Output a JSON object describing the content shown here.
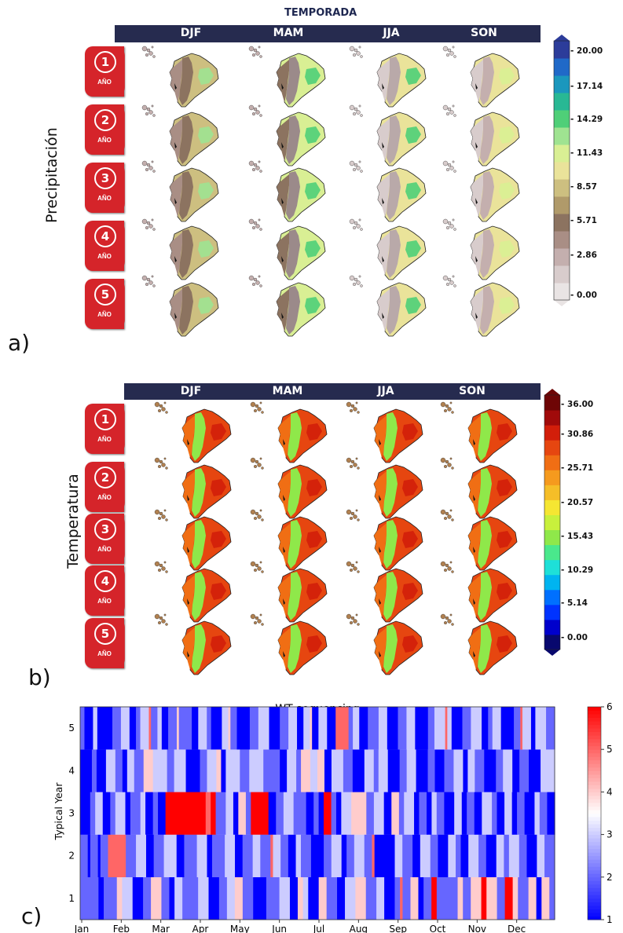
{
  "panel_a": {
    "top_title": "TEMPORADA",
    "seasons": [
      "DJF",
      "MAM",
      "JJA",
      "SON"
    ],
    "ylabel": "Precipitación",
    "panel_label": "a)",
    "years": [
      "1",
      "2",
      "3",
      "4",
      "5"
    ],
    "year_word": "AÑO",
    "colorbar_ticks": [
      "20.00",
      "17.14",
      "14.29",
      "11.43",
      "8.57",
      "5.71",
      "2.86",
      "0.00"
    ],
    "colors": [
      "#e9e4e4",
      "#d8cccc",
      "#c4afae",
      "#a98e85",
      "#8c7360",
      "#b09a6a",
      "#cdbf80",
      "#eae39a",
      "#d9ef94",
      "#9fe391",
      "#4fcf78",
      "#28b894",
      "#1b97bd",
      "#2069c8",
      "#2c3c9a"
    ]
  },
  "panel_b": {
    "seasons": [
      "DJF",
      "MAM",
      "JJA",
      "SON"
    ],
    "ylabel": "Temperatura",
    "panel_label": "b)",
    "years": [
      "1",
      "2",
      "3",
      "4",
      "5"
    ],
    "year_word": "AÑO",
    "colorbar_ticks": [
      "36.00",
      "30.86",
      "25.71",
      "20.57",
      "15.43",
      "10.29",
      "5.14",
      "0.00"
    ],
    "colors": [
      "#08086e",
      "#0000cc",
      "#0033ff",
      "#0070ff",
      "#00b4f0",
      "#1ee0d8",
      "#4ae88c",
      "#8fe84a",
      "#c8f03c",
      "#f5e632",
      "#f5be28",
      "#f59a1e",
      "#f06e14",
      "#e64610",
      "#d21e0a",
      "#a00a0a",
      "#6e0505"
    ]
  },
  "chart_data": {
    "type": "heatmap",
    "title": "WT sequencing",
    "xlabel": "",
    "ylabel": "Typical Year",
    "x_ticks": [
      "Jan",
      "Feb",
      "Mar",
      "Apr",
      "May",
      "Jun",
      "Jul",
      "Aug",
      "Sep",
      "Oct",
      "Nov",
      "Dec"
    ],
    "y_ticks": [
      "1",
      "2",
      "3",
      "4",
      "5"
    ],
    "colorbar_ticks": [
      "1",
      "2",
      "3",
      "4",
      "5",
      "6"
    ],
    "zlim": [
      1,
      6
    ],
    "panel_label": "c)",
    "colorscale": "bwr",
    "rows": {
      "5": [
        [
          2,
          2
        ],
        [
          1,
          4
        ],
        [
          3,
          2
        ],
        [
          1,
          7
        ],
        [
          2,
          4
        ],
        [
          3,
          4
        ],
        [
          1,
          3
        ],
        [
          2,
          2
        ],
        [
          3,
          4
        ],
        [
          5,
          1
        ],
        [
          2,
          3
        ],
        [
          3,
          2
        ],
        [
          1,
          3
        ],
        [
          2,
          4
        ],
        [
          4,
          1
        ],
        [
          2,
          6
        ],
        [
          1,
          3
        ],
        [
          3,
          4
        ],
        [
          2,
          2
        ],
        [
          1,
          5
        ],
        [
          3,
          3
        ],
        [
          4,
          1
        ],
        [
          2,
          3
        ],
        [
          1,
          6
        ],
        [
          2,
          4
        ],
        [
          3,
          5
        ],
        [
          1,
          5
        ],
        [
          2,
          4
        ],
        [
          3,
          4
        ],
        [
          1,
          3
        ],
        [
          3,
          3
        ],
        [
          4,
          1
        ],
        [
          1,
          3
        ],
        [
          3,
          4
        ],
        [
          1,
          4
        ],
        [
          5,
          6
        ],
        [
          2,
          2
        ],
        [
          3,
          3
        ],
        [
          1,
          4
        ],
        [
          2,
          5
        ],
        [
          3,
          4
        ],
        [
          1,
          5
        ],
        [
          2,
          4
        ],
        [
          3,
          4
        ],
        [
          1,
          6
        ],
        [
          2,
          3
        ],
        [
          3,
          5
        ],
        [
          5,
          1
        ],
        [
          3,
          2
        ],
        [
          1,
          5
        ],
        [
          2,
          4
        ],
        [
          3,
          5
        ],
        [
          1,
          3
        ],
        [
          2,
          2
        ],
        [
          3,
          4
        ],
        [
          1,
          6
        ],
        [
          2,
          3
        ],
        [
          5,
          1
        ],
        [
          3,
          4
        ],
        [
          1,
          2
        ],
        [
          3,
          5
        ],
        [
          2,
          4
        ]
      ],
      "4": [
        [
          1,
          5
        ],
        [
          2,
          2
        ],
        [
          1,
          4
        ],
        [
          3,
          4
        ],
        [
          2,
          3
        ],
        [
          1,
          2
        ],
        [
          3,
          3
        ],
        [
          2,
          4
        ],
        [
          4,
          4
        ],
        [
          3,
          6
        ],
        [
          2,
          3
        ],
        [
          3,
          5
        ],
        [
          1,
          6
        ],
        [
          2,
          3
        ],
        [
          3,
          4
        ],
        [
          4,
          2
        ],
        [
          1,
          2
        ],
        [
          3,
          6
        ],
        [
          2,
          4
        ],
        [
          3,
          6
        ],
        [
          2,
          7
        ],
        [
          1,
          3
        ],
        [
          3,
          4
        ],
        [
          2,
          2
        ],
        [
          4,
          4
        ],
        [
          3,
          3
        ],
        [
          4,
          3
        ],
        [
          1,
          3
        ],
        [
          3,
          5
        ],
        [
          2,
          4
        ],
        [
          1,
          5
        ],
        [
          3,
          4
        ],
        [
          2,
          2
        ],
        [
          3,
          4
        ],
        [
          1,
          5
        ],
        [
          2,
          3
        ],
        [
          3,
          4
        ],
        [
          1,
          5
        ],
        [
          2,
          3
        ],
        [
          1,
          4
        ],
        [
          2,
          4
        ],
        [
          3,
          4
        ],
        [
          1,
          2
        ],
        [
          3,
          3
        ],
        [
          2,
          4
        ],
        [
          1,
          5
        ],
        [
          2,
          3
        ],
        [
          3,
          4
        ],
        [
          1,
          3
        ],
        [
          2,
          4
        ],
        [
          1,
          5
        ],
        [
          3,
          6
        ]
      ],
      "3": [
        [
          1,
          4
        ],
        [
          2,
          2
        ],
        [
          3,
          3
        ],
        [
          1,
          3
        ],
        [
          2,
          2
        ],
        [
          3,
          4
        ],
        [
          1,
          2
        ],
        [
          2,
          4
        ],
        [
          3,
          2
        ],
        [
          1,
          3
        ],
        [
          2,
          2
        ],
        [
          1,
          3
        ],
        [
          6,
          16
        ],
        [
          5,
          2
        ],
        [
          6,
          2
        ],
        [
          2,
          4
        ],
        [
          3,
          3
        ],
        [
          1,
          2
        ],
        [
          4,
          3
        ],
        [
          2,
          2
        ],
        [
          6,
          7
        ],
        [
          1,
          3
        ],
        [
          2,
          3
        ],
        [
          3,
          4
        ],
        [
          2,
          5
        ],
        [
          1,
          3
        ],
        [
          2,
          2
        ],
        [
          1,
          2
        ],
        [
          6,
          3
        ],
        [
          2,
          2
        ],
        [
          1,
          2
        ],
        [
          3,
          4
        ],
        [
          4,
          6
        ],
        [
          2,
          3
        ],
        [
          3,
          4
        ],
        [
          1,
          3
        ],
        [
          4,
          3
        ],
        [
          2,
          2
        ],
        [
          3,
          4
        ],
        [
          1,
          2
        ],
        [
          2,
          3
        ],
        [
          1,
          2
        ],
        [
          3,
          2
        ],
        [
          2,
          3
        ],
        [
          1,
          4
        ],
        [
          3,
          3
        ],
        [
          1,
          2
        ],
        [
          2,
          3
        ],
        [
          1,
          3
        ],
        [
          3,
          4
        ],
        [
          2,
          2
        ],
        [
          1,
          3
        ],
        [
          3,
          3
        ],
        [
          1,
          2
        ],
        [
          2,
          3
        ],
        [
          1,
          4
        ],
        [
          3,
          2
        ],
        [
          2,
          3
        ],
        [
          1,
          3
        ]
      ],
      "2": [
        [
          2,
          3
        ],
        [
          1,
          1
        ],
        [
          2,
          3
        ],
        [
          1,
          1
        ],
        [
          2,
          3
        ],
        [
          5,
          7
        ],
        [
          2,
          4
        ],
        [
          3,
          4
        ],
        [
          1,
          3
        ],
        [
          2,
          4
        ],
        [
          3,
          5
        ],
        [
          1,
          3
        ],
        [
          2,
          5
        ],
        [
          3,
          4
        ],
        [
          1,
          2
        ],
        [
          2,
          5
        ],
        [
          3,
          4
        ],
        [
          1,
          3
        ],
        [
          2,
          4
        ],
        [
          3,
          3
        ],
        [
          2,
          4
        ],
        [
          5,
          1
        ],
        [
          3,
          3
        ],
        [
          2,
          3
        ],
        [
          1,
          3
        ],
        [
          3,
          2
        ],
        [
          2,
          4
        ],
        [
          1,
          5
        ],
        [
          2,
          3
        ],
        [
          3,
          4
        ],
        [
          1,
          2
        ],
        [
          2,
          3
        ],
        [
          3,
          4
        ],
        [
          2,
          3
        ],
        [
          5,
          1
        ],
        [
          1,
          8
        ],
        [
          3,
          3
        ],
        [
          2,
          4
        ],
        [
          1,
          3
        ],
        [
          3,
          4
        ],
        [
          2,
          3
        ],
        [
          1,
          4
        ],
        [
          3,
          3
        ],
        [
          2,
          2
        ],
        [
          1,
          3
        ],
        [
          3,
          4
        ],
        [
          2,
          3
        ],
        [
          1,
          4
        ],
        [
          3,
          3
        ],
        [
          2,
          2
        ],
        [
          3,
          4
        ],
        [
          2,
          3
        ],
        [
          1,
          4
        ],
        [
          3,
          3
        ],
        [
          2,
          4
        ]
      ],
      "1": [
        [
          2,
          7
        ],
        [
          1,
          2
        ],
        [
          2,
          5
        ],
        [
          4,
          2
        ],
        [
          3,
          4
        ],
        [
          1,
          4
        ],
        [
          2,
          3
        ],
        [
          4,
          4
        ],
        [
          2,
          3
        ],
        [
          1,
          2
        ],
        [
          3,
          3
        ],
        [
          2,
          6
        ],
        [
          3,
          4
        ],
        [
          1,
          4
        ],
        [
          2,
          3
        ],
        [
          3,
          3
        ],
        [
          4,
          3
        ],
        [
          2,
          4
        ],
        [
          1,
          5
        ],
        [
          2,
          5
        ],
        [
          3,
          4
        ],
        [
          1,
          3
        ],
        [
          4,
          2
        ],
        [
          3,
          2
        ],
        [
          1,
          4
        ],
        [
          4,
          3
        ],
        [
          2,
          4
        ],
        [
          1,
          3
        ],
        [
          3,
          4
        ],
        [
          4,
          4
        ],
        [
          2,
          4
        ],
        [
          3,
          3
        ],
        [
          1,
          4
        ],
        [
          2,
          2
        ],
        [
          5,
          1
        ],
        [
          2,
          3
        ],
        [
          4,
          3
        ],
        [
          1,
          2
        ],
        [
          2,
          3
        ],
        [
          6,
          2
        ],
        [
          2,
          8
        ],
        [
          4,
          2
        ],
        [
          2,
          3
        ],
        [
          4,
          4
        ],
        [
          6,
          2
        ],
        [
          4,
          4
        ],
        [
          2,
          3
        ],
        [
          6,
          3
        ],
        [
          4,
          2
        ],
        [
          2,
          4
        ],
        [
          4,
          3
        ],
        [
          1,
          2
        ],
        [
          4,
          3
        ],
        [
          2,
          2
        ]
      ]
    }
  }
}
